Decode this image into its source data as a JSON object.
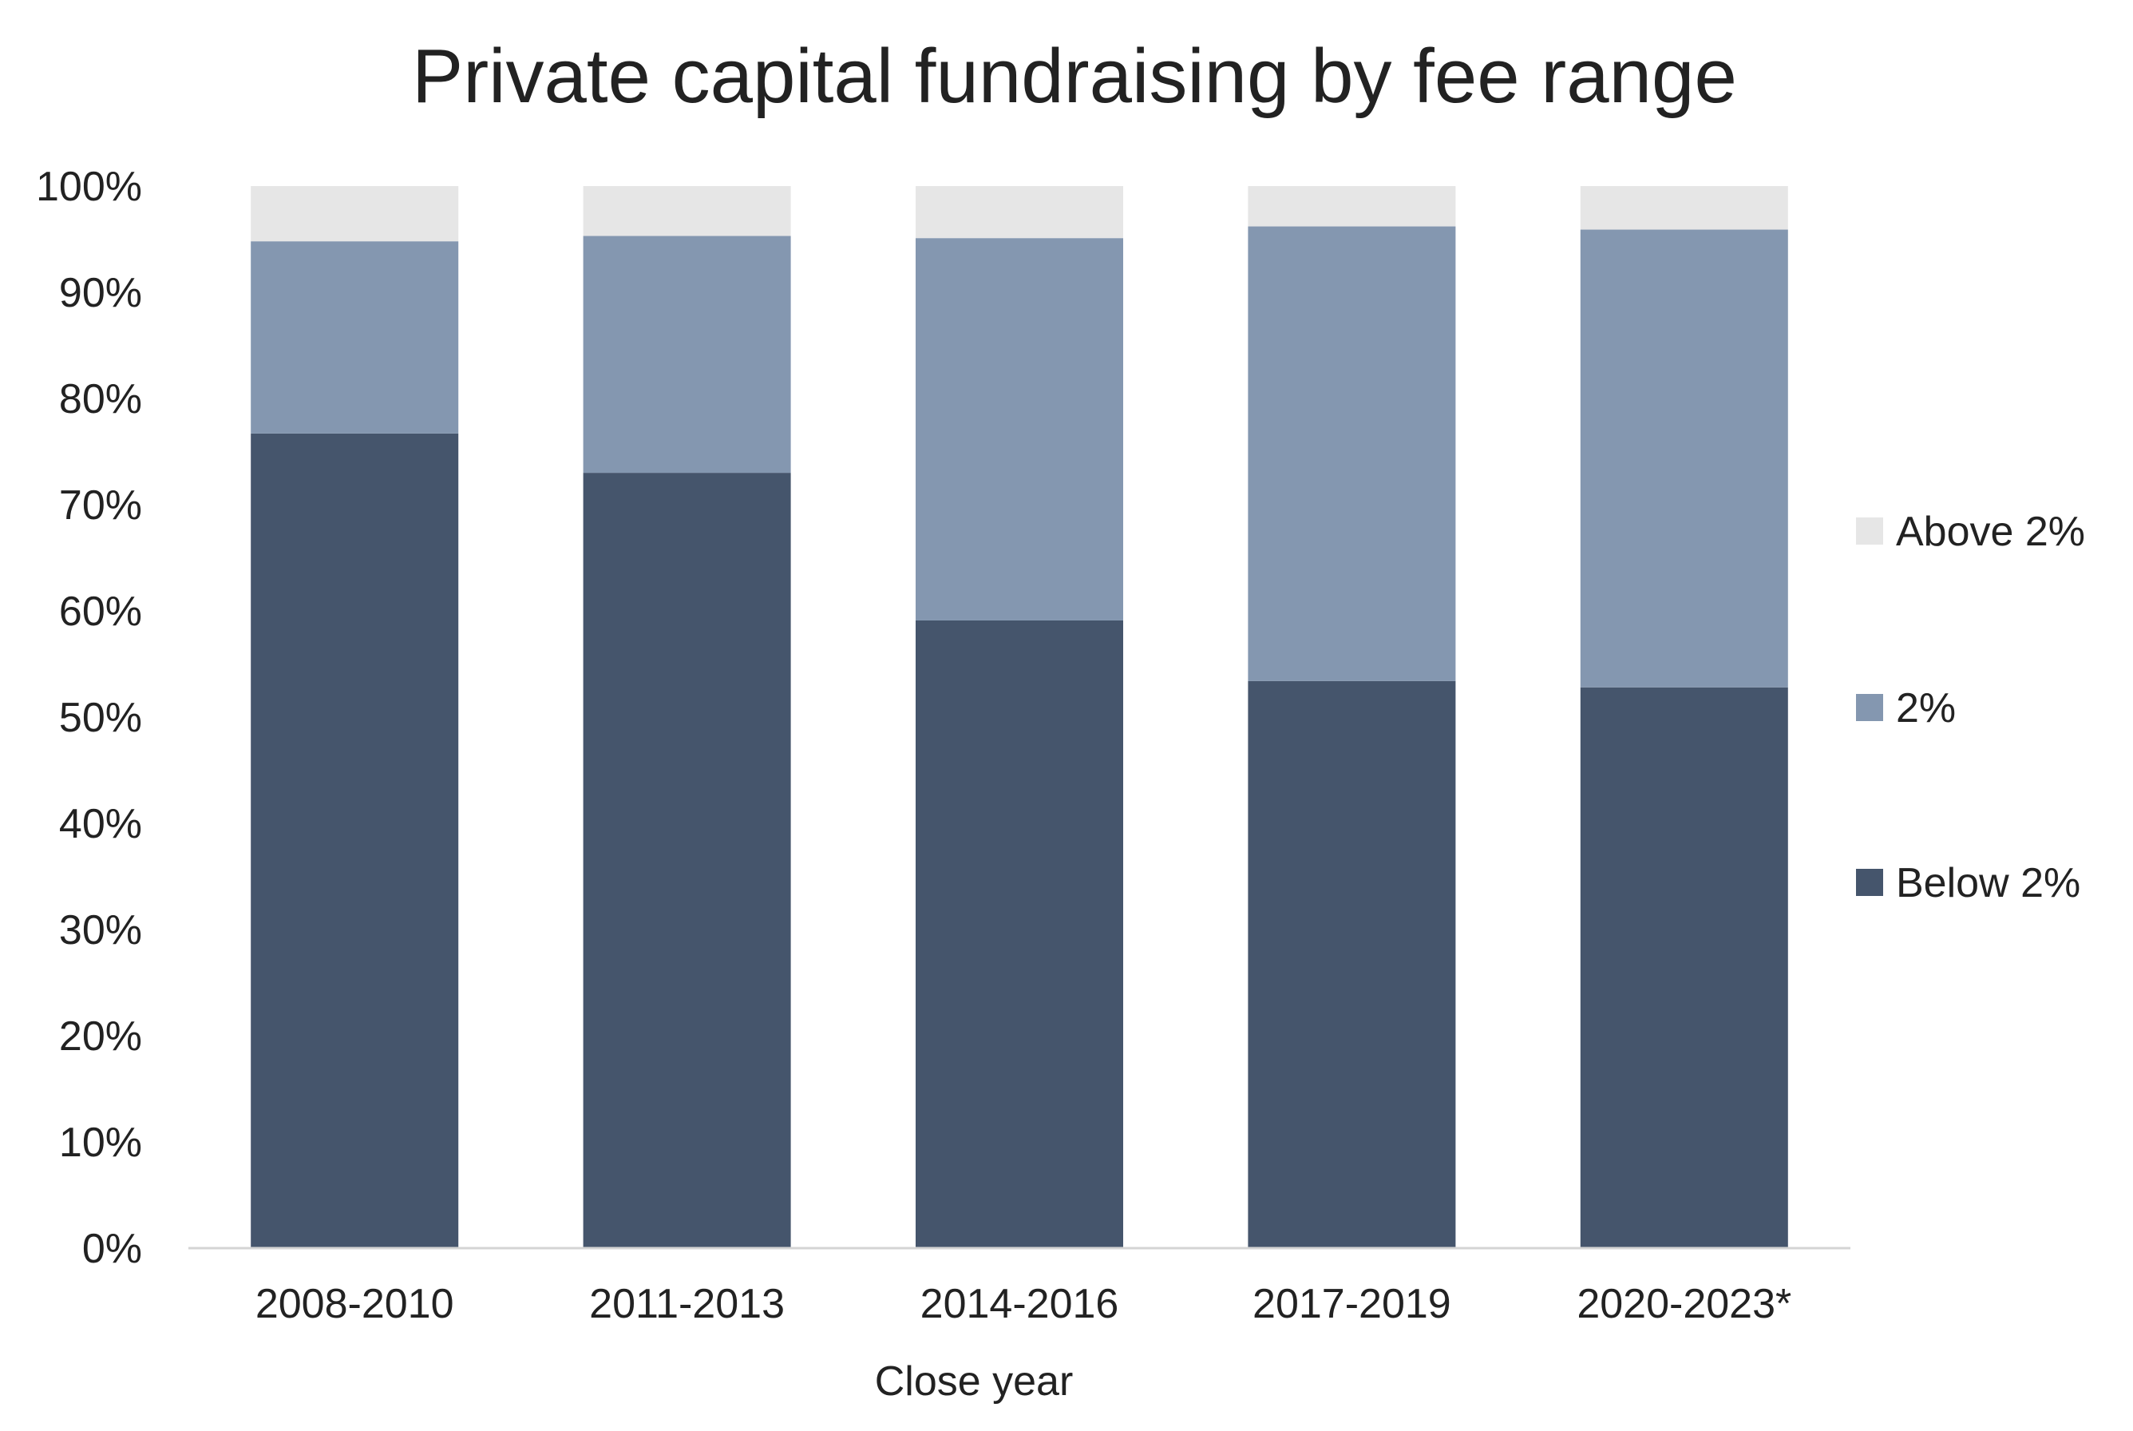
{
  "chart_data": {
    "type": "bar",
    "stacked": true,
    "title": "Private capital fundraising by fee range",
    "xlabel": "Close year",
    "ylabel": "",
    "categories": [
      "2008-2010",
      "2011-2013",
      "2014-2016",
      "2017-2019",
      "2020-2023*"
    ],
    "series": [
      {
        "name": "Below 2%",
        "color": "#45556C",
        "values": [
          76.7,
          73.0,
          59.1,
          53.4,
          52.8
        ]
      },
      {
        "name": "2%",
        "color": "#8497B0",
        "values": [
          18.1,
          22.3,
          36.0,
          42.8,
          43.1
        ]
      },
      {
        "name": "Above 2%",
        "color": "#E6E6E6",
        "values": [
          5.2,
          4.7,
          4.9,
          3.8,
          4.1
        ]
      }
    ],
    "ylim": [
      0,
      100
    ],
    "yticks": [
      "0%",
      "10%",
      "20%",
      "30%",
      "40%",
      "50%",
      "60%",
      "70%",
      "80%",
      "90%",
      "100%"
    ],
    "grid": false,
    "legend": {
      "position": "right",
      "order": [
        "Above 2%",
        "2%",
        "Below 2%"
      ]
    }
  }
}
